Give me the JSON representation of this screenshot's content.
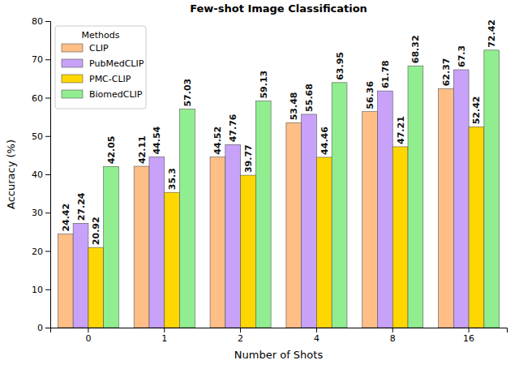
{
  "chart_data": {
    "type": "bar",
    "title": "Few-shot Image Classification",
    "x_label": "Number of Shots",
    "y_label": "Accuracy (%)",
    "categories": [
      0,
      1,
      2,
      4,
      8,
      16
    ],
    "series": [
      {
        "name": "CLIP",
        "color": "#ffbe86",
        "values": [
          24.42,
          42.11,
          44.52,
          53.48,
          56.36,
          62.37
        ]
      },
      {
        "name": "PubMedCLIP",
        "color": "#c8a2f8",
        "values": [
          27.24,
          44.54,
          47.76,
          55.68,
          61.78,
          67.3
        ]
      },
      {
        "name": "PMC-CLIP",
        "color": "#ffd700",
        "values": [
          20.92,
          35.3,
          39.77,
          44.46,
          47.21,
          52.42
        ]
      },
      {
        "name": "BiomedCLIP",
        "color": "#90ee90",
        "values": [
          42.05,
          57.03,
          59.13,
          63.95,
          68.32,
          72.42
        ]
      }
    ],
    "ylim": [
      0,
      80
    ],
    "yticks": [
      0,
      10,
      20,
      30,
      40,
      50,
      60,
      70,
      80
    ],
    "grid": false,
    "legend": "upper left",
    "legend_title": "Methods",
    "data_labels": true
  }
}
